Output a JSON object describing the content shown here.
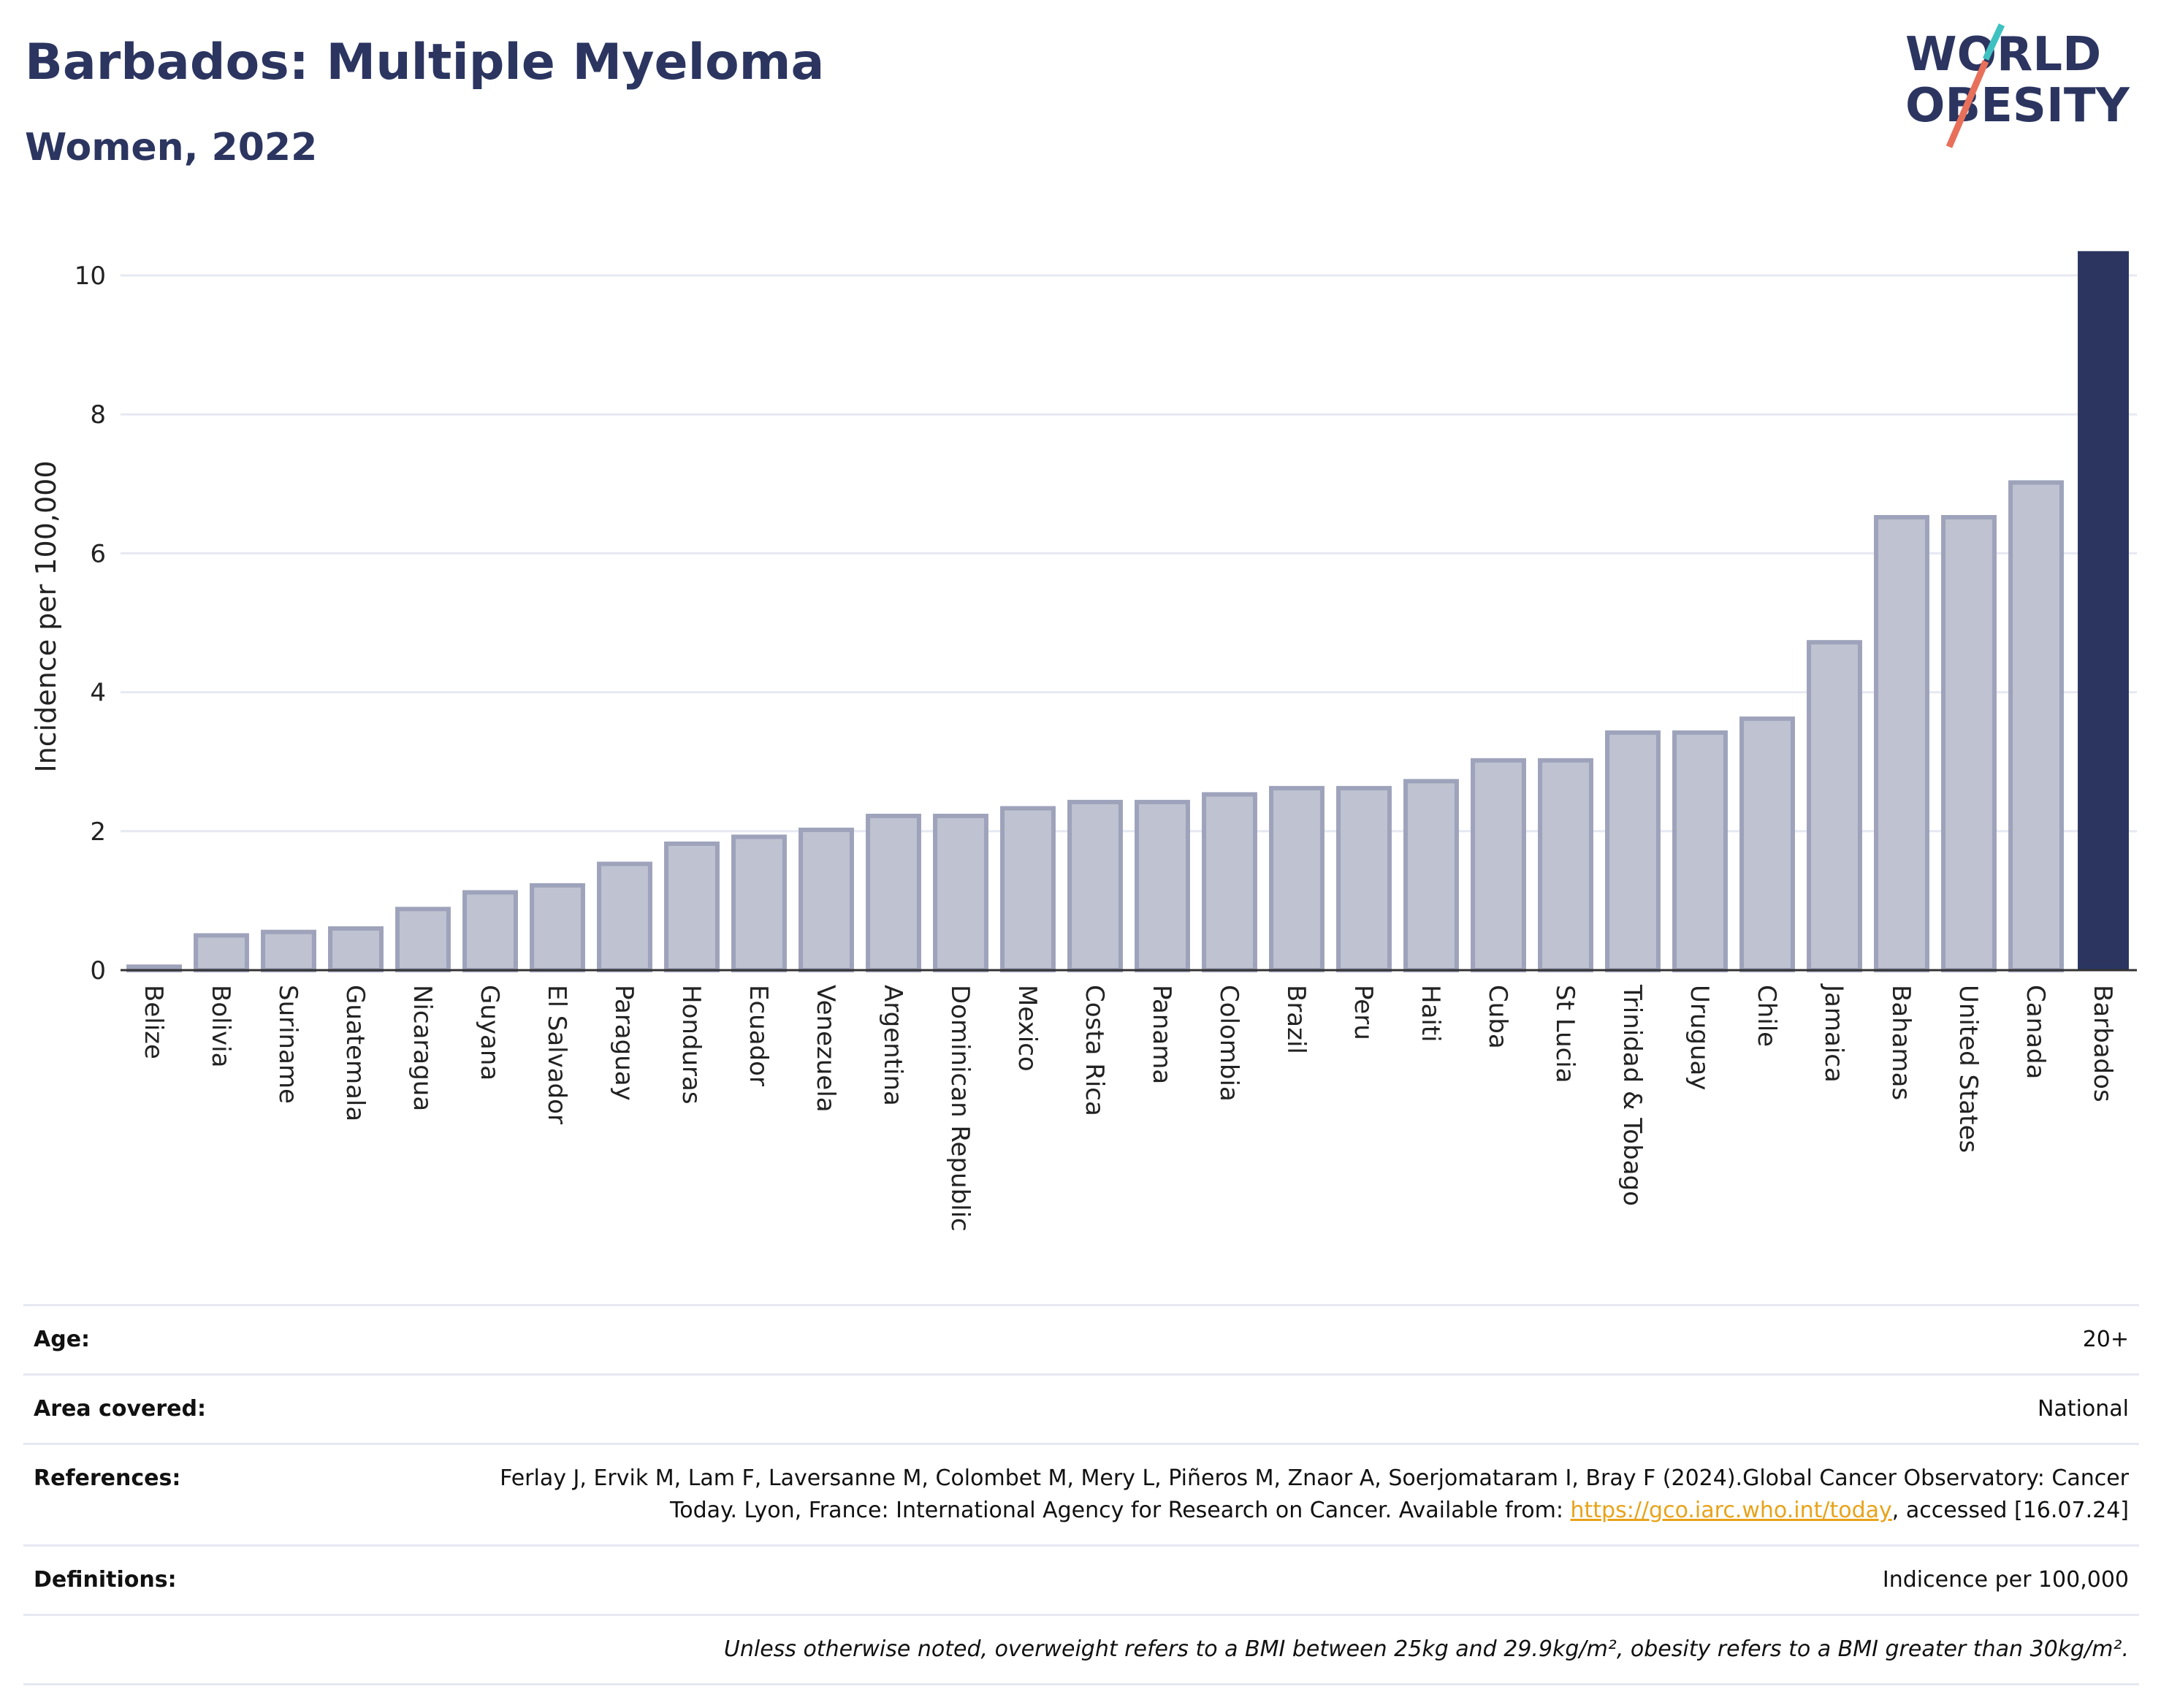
{
  "header": {
    "title": "Barbados: Multiple Myeloma",
    "subtitle": "Women, 2022"
  },
  "logo": {
    "line1": "WORLD",
    "line2": "OBESITY"
  },
  "colors": {
    "title": "#2b3560",
    "highlight_bar": "#2b3560",
    "bar_fill": "#bfc2d0",
    "bar_stroke": "#9ea3bb",
    "grid": "#e6e8f2",
    "link": "#e8a31a",
    "logo_teal": "#3ec1c1",
    "logo_coral": "#e8705a"
  },
  "chart_data": {
    "type": "bar",
    "ylabel": "Incidence per 100,000",
    "xlabel": "",
    "ylim": [
      0,
      10.6
    ],
    "yticks": [
      0,
      2,
      4,
      6,
      8,
      10
    ],
    "grid": true,
    "highlight": "Barbados",
    "categories": [
      "Belize",
      "Bolivia",
      "Suriname",
      "Guatemala",
      "Nicaragua",
      "Guyana",
      "El Salvador",
      "Paraguay",
      "Honduras",
      "Ecuador",
      "Venezuela",
      "Argentina",
      "Dominican Republic",
      "Mexico",
      "Costa Rica",
      "Panama",
      "Colombia",
      "Brazil",
      "Peru",
      "Haiti",
      "Cuba",
      "St Lucia",
      "Trinidad & Tobago",
      "Uruguay",
      "Chile",
      "Jamaica",
      "Bahamas",
      "United States",
      "Canada",
      "Barbados"
    ],
    "values": [
      0.05,
      0.5,
      0.55,
      0.6,
      0.88,
      1.12,
      1.22,
      1.53,
      1.82,
      1.92,
      2.02,
      2.22,
      2.22,
      2.33,
      2.42,
      2.42,
      2.53,
      2.62,
      2.62,
      2.72,
      3.02,
      3.02,
      3.42,
      3.42,
      3.62,
      4.72,
      6.52,
      6.52,
      7.02,
      10.35
    ]
  },
  "info": {
    "age_label": "Age:",
    "age_value": "20+",
    "area_label": "Area covered:",
    "area_value": "National",
    "references_label": "References:",
    "references_text": "Ferlay J, Ervik M, Lam F, Laversanne M, Colombet M, Mery L, Piñeros M, Znaor A, Soerjomataram I, Bray F (2024).Global Cancer Observatory: Cancer Today. Lyon, France: International Agency for Research on Cancer. Available from:",
    "references_link": "https://gco.iarc.who.int/today",
    "references_suffix": ", accessed [16.07.24]",
    "definitions_label": "Definitions:",
    "definitions_value": "Indicence per 100,000",
    "note": "Unless otherwise noted, overweight refers to a BMI between 25kg and 29.9kg/m², obesity refers to a BMI greater than 30kg/m²."
  }
}
